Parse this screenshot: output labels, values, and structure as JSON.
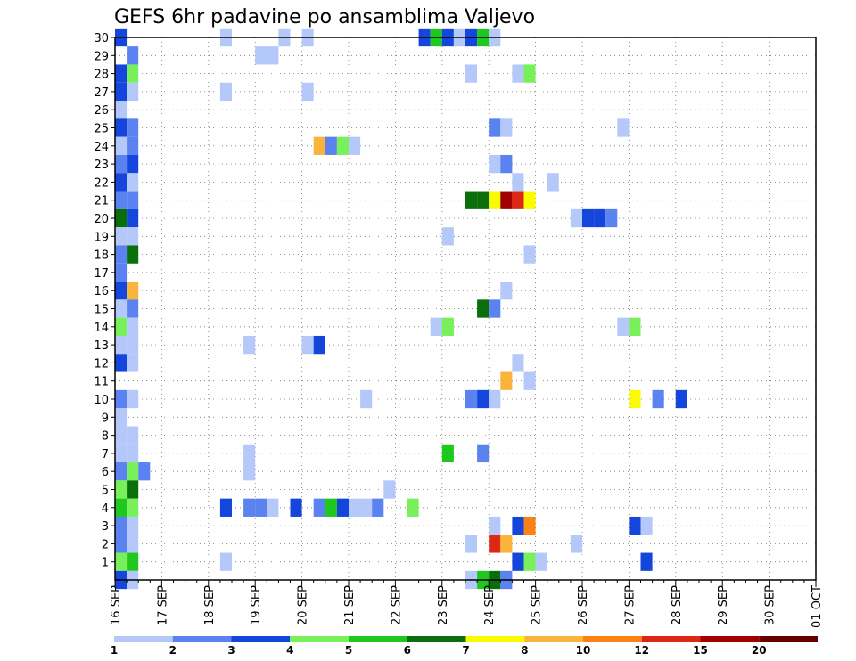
{
  "chart_data": {
    "type": "heatmap",
    "title": "GEFS 6hr padavine po ansamblima Valjevo",
    "y_ticks": [
      "1",
      "2",
      "3",
      "4",
      "5",
      "6",
      "7",
      "8",
      "9",
      "10",
      "11",
      "12",
      "13",
      "14",
      "15",
      "16",
      "17",
      "18",
      "19",
      "20",
      "21",
      "22",
      "23",
      "24",
      "25",
      "26",
      "27",
      "28",
      "29",
      "30"
    ],
    "ylim": [
      0,
      30
    ],
    "x_tick_labels": [
      "16 SEP",
      "17 SEP",
      "18 SEP",
      "19 SEP",
      "20 SEP",
      "21 SEP",
      "22 SEP",
      "23 SEP",
      "24 SEP",
      "25 SEP",
      "26 SEP",
      "27 SEP",
      "28 SEP",
      "29 SEP",
      "30 SEP",
      "01 OCT"
    ],
    "x_start": "16 SEP",
    "x_end": "01 OCT",
    "step_hours": 6,
    "grid": true,
    "legend": {
      "placement": "bottom",
      "labels": [
        "1",
        "2",
        "3",
        "4",
        "5",
        "6",
        "7",
        "8",
        "10",
        "12",
        "15",
        "20"
      ],
      "colors": [
        "#b4c8fa",
        "#5a82f0",
        "#1446dc",
        "#78f05a",
        "#1ec81e",
        "#0a6e0a",
        "#fafa00",
        "#fab43c",
        "#fa8214",
        "#dc2814",
        "#a00000",
        "#640000"
      ]
    },
    "cells": [
      {
        "member": 30,
        "slot": 0,
        "bin": 2
      },
      {
        "member": 30,
        "slot": 9,
        "bin": 0
      },
      {
        "member": 30,
        "slot": 14,
        "bin": 0
      },
      {
        "member": 30,
        "slot": 16,
        "bin": 0
      },
      {
        "member": 30,
        "slot": 26,
        "bin": 2
      },
      {
        "member": 30,
        "slot": 27,
        "bin": 4
      },
      {
        "member": 30,
        "slot": 28,
        "bin": 2
      },
      {
        "member": 30,
        "slot": 29,
        "bin": 0
      },
      {
        "member": 30,
        "slot": 30,
        "bin": 2
      },
      {
        "member": 30,
        "slot": 31,
        "bin": 4
      },
      {
        "member": 30,
        "slot": 32,
        "bin": 0
      },
      {
        "member": 29,
        "slot": 1,
        "bin": 1
      },
      {
        "member": 29,
        "slot": 12,
        "bin": 0
      },
      {
        "member": 29,
        "slot": 13,
        "bin": 0
      },
      {
        "member": 28,
        "slot": 0,
        "bin": 2
      },
      {
        "member": 28,
        "slot": 1,
        "bin": 3
      },
      {
        "member": 28,
        "slot": 30,
        "bin": 0
      },
      {
        "member": 28,
        "slot": 34,
        "bin": 0
      },
      {
        "member": 28,
        "slot": 35,
        "bin": 3
      },
      {
        "member": 27,
        "slot": 0,
        "bin": 2
      },
      {
        "member": 27,
        "slot": 1,
        "bin": 0
      },
      {
        "member": 27,
        "slot": 9,
        "bin": 0
      },
      {
        "member": 27,
        "slot": 16,
        "bin": 0
      },
      {
        "member": 26,
        "slot": 0,
        "bin": 0
      },
      {
        "member": 25,
        "slot": 0,
        "bin": 2
      },
      {
        "member": 25,
        "slot": 1,
        "bin": 1
      },
      {
        "member": 25,
        "slot": 32,
        "bin": 1
      },
      {
        "member": 25,
        "slot": 33,
        "bin": 0
      },
      {
        "member": 25,
        "slot": 43,
        "bin": 0
      },
      {
        "member": 24,
        "slot": 0,
        "bin": 0
      },
      {
        "member": 24,
        "slot": 1,
        "bin": 1
      },
      {
        "member": 24,
        "slot": 17,
        "bin": 7
      },
      {
        "member": 24,
        "slot": 18,
        "bin": 1
      },
      {
        "member": 24,
        "slot": 19,
        "bin": 3
      },
      {
        "member": 24,
        "slot": 20,
        "bin": 0
      },
      {
        "member": 23,
        "slot": 0,
        "bin": 1
      },
      {
        "member": 23,
        "slot": 1,
        "bin": 2
      },
      {
        "member": 23,
        "slot": 32,
        "bin": 0
      },
      {
        "member": 23,
        "slot": 33,
        "bin": 1
      },
      {
        "member": 22,
        "slot": 0,
        "bin": 2
      },
      {
        "member": 22,
        "slot": 1,
        "bin": 0
      },
      {
        "member": 22,
        "slot": 34,
        "bin": 0
      },
      {
        "member": 22,
        "slot": 37,
        "bin": 0
      },
      {
        "member": 21,
        "slot": 0,
        "bin": 1
      },
      {
        "member": 21,
        "slot": 1,
        "bin": 1
      },
      {
        "member": 21,
        "slot": 30,
        "bin": 5
      },
      {
        "member": 21,
        "slot": 31,
        "bin": 5
      },
      {
        "member": 21,
        "slot": 32,
        "bin": 6
      },
      {
        "member": 21,
        "slot": 33,
        "bin": 10
      },
      {
        "member": 21,
        "slot": 34,
        "bin": 9
      },
      {
        "member": 21,
        "slot": 35,
        "bin": 6
      },
      {
        "member": 20,
        "slot": 0,
        "bin": 5
      },
      {
        "member": 20,
        "slot": 1,
        "bin": 2
      },
      {
        "member": 20,
        "slot": 39,
        "bin": 0
      },
      {
        "member": 20,
        "slot": 40,
        "bin": 2
      },
      {
        "member": 20,
        "slot": 41,
        "bin": 2
      },
      {
        "member": 20,
        "slot": 42,
        "bin": 1
      },
      {
        "member": 19,
        "slot": 0,
        "bin": 0
      },
      {
        "member": 19,
        "slot": 1,
        "bin": 0
      },
      {
        "member": 19,
        "slot": 28,
        "bin": 0
      },
      {
        "member": 18,
        "slot": 0,
        "bin": 1
      },
      {
        "member": 18,
        "slot": 1,
        "bin": 5
      },
      {
        "member": 18,
        "slot": 35,
        "bin": 0
      },
      {
        "member": 17,
        "slot": 0,
        "bin": 1
      },
      {
        "member": 16,
        "slot": 0,
        "bin": 2
      },
      {
        "member": 16,
        "slot": 1,
        "bin": 7
      },
      {
        "member": 16,
        "slot": 33,
        "bin": 0
      },
      {
        "member": 15,
        "slot": 0,
        "bin": 0
      },
      {
        "member": 15,
        "slot": 1,
        "bin": 1
      },
      {
        "member": 15,
        "slot": 31,
        "bin": 5
      },
      {
        "member": 15,
        "slot": 32,
        "bin": 1
      },
      {
        "member": 14,
        "slot": 0,
        "bin": 3
      },
      {
        "member": 14,
        "slot": 1,
        "bin": 0
      },
      {
        "member": 14,
        "slot": 27,
        "bin": 0
      },
      {
        "member": 14,
        "slot": 28,
        "bin": 3
      },
      {
        "member": 14,
        "slot": 43,
        "bin": 0
      },
      {
        "member": 14,
        "slot": 44,
        "bin": 3
      },
      {
        "member": 13,
        "slot": 0,
        "bin": 0
      },
      {
        "member": 13,
        "slot": 1,
        "bin": 0
      },
      {
        "member": 13,
        "slot": 11,
        "bin": 0
      },
      {
        "member": 13,
        "slot": 16,
        "bin": 0
      },
      {
        "member": 13,
        "slot": 17,
        "bin": 2
      },
      {
        "member": 12,
        "slot": 0,
        "bin": 2
      },
      {
        "member": 12,
        "slot": 1,
        "bin": 0
      },
      {
        "member": 12,
        "slot": 34,
        "bin": 0
      },
      {
        "member": 11,
        "slot": 33,
        "bin": 7
      },
      {
        "member": 11,
        "slot": 35,
        "bin": 0
      },
      {
        "member": 10,
        "slot": 0,
        "bin": 1
      },
      {
        "member": 10,
        "slot": 1,
        "bin": 0
      },
      {
        "member": 10,
        "slot": 21,
        "bin": 0
      },
      {
        "member": 10,
        "slot": 30,
        "bin": 1
      },
      {
        "member": 10,
        "slot": 31,
        "bin": 2
      },
      {
        "member": 10,
        "slot": 32,
        "bin": 0
      },
      {
        "member": 10,
        "slot": 44,
        "bin": 6
      },
      {
        "member": 10,
        "slot": 46,
        "bin": 1
      },
      {
        "member": 10,
        "slot": 48,
        "bin": 2
      },
      {
        "member": 9,
        "slot": 0,
        "bin": 0
      },
      {
        "member": 8,
        "slot": 0,
        "bin": 0
      },
      {
        "member": 8,
        "slot": 1,
        "bin": 0
      },
      {
        "member": 7,
        "slot": 0,
        "bin": 0
      },
      {
        "member": 7,
        "slot": 1,
        "bin": 0
      },
      {
        "member": 7,
        "slot": 11,
        "bin": 0
      },
      {
        "member": 7,
        "slot": 28,
        "bin": 4
      },
      {
        "member": 7,
        "slot": 31,
        "bin": 1
      },
      {
        "member": 6,
        "slot": 0,
        "bin": 1
      },
      {
        "member": 6,
        "slot": 1,
        "bin": 3
      },
      {
        "member": 6,
        "slot": 2,
        "bin": 1
      },
      {
        "member": 6,
        "slot": 11,
        "bin": 0
      },
      {
        "member": 5,
        "slot": 0,
        "bin": 3
      },
      {
        "member": 5,
        "slot": 1,
        "bin": 5
      },
      {
        "member": 5,
        "slot": 23,
        "bin": 0
      },
      {
        "member": 4,
        "slot": 0,
        "bin": 4
      },
      {
        "member": 4,
        "slot": 1,
        "bin": 3
      },
      {
        "member": 4,
        "slot": 9,
        "bin": 2
      },
      {
        "member": 4,
        "slot": 11,
        "bin": 1
      },
      {
        "member": 4,
        "slot": 12,
        "bin": 1
      },
      {
        "member": 4,
        "slot": 13,
        "bin": 0
      },
      {
        "member": 4,
        "slot": 15,
        "bin": 2
      },
      {
        "member": 4,
        "slot": 17,
        "bin": 1
      },
      {
        "member": 4,
        "slot": 18,
        "bin": 4
      },
      {
        "member": 4,
        "slot": 19,
        "bin": 2
      },
      {
        "member": 4,
        "slot": 20,
        "bin": 0
      },
      {
        "member": 4,
        "slot": 21,
        "bin": 0
      },
      {
        "member": 4,
        "slot": 22,
        "bin": 1
      },
      {
        "member": 4,
        "slot": 25,
        "bin": 3
      },
      {
        "member": 3,
        "slot": 0,
        "bin": 1
      },
      {
        "member": 3,
        "slot": 1,
        "bin": 0
      },
      {
        "member": 3,
        "slot": 32,
        "bin": 0
      },
      {
        "member": 3,
        "slot": 34,
        "bin": 2
      },
      {
        "member": 3,
        "slot": 35,
        "bin": 8
      },
      {
        "member": 3,
        "slot": 44,
        "bin": 2
      },
      {
        "member": 3,
        "slot": 45,
        "bin": 0
      },
      {
        "member": 2,
        "slot": 0,
        "bin": 1
      },
      {
        "member": 2,
        "slot": 1,
        "bin": 0
      },
      {
        "member": 2,
        "slot": 30,
        "bin": 0
      },
      {
        "member": 2,
        "slot": 32,
        "bin": 9
      },
      {
        "member": 2,
        "slot": 33,
        "bin": 7
      },
      {
        "member": 2,
        "slot": 39,
        "bin": 0
      },
      {
        "member": 1,
        "slot": 0,
        "bin": 3
      },
      {
        "member": 1,
        "slot": 1,
        "bin": 4
      },
      {
        "member": 1,
        "slot": 9,
        "bin": 0
      },
      {
        "member": 1,
        "slot": 34,
        "bin": 2
      },
      {
        "member": 1,
        "slot": 35,
        "bin": 3
      },
      {
        "member": 1,
        "slot": 36,
        "bin": 0
      },
      {
        "member": 1,
        "slot": 45,
        "bin": 2
      },
      {
        "member": 0,
        "slot": 0,
        "bin": 2
      },
      {
        "member": 0,
        "slot": 1,
        "bin": 0
      },
      {
        "member": 0,
        "slot": 30,
        "bin": 0
      },
      {
        "member": 0,
        "slot": 31,
        "bin": 4
      },
      {
        "member": 0,
        "slot": 32,
        "bin": 5
      },
      {
        "member": 0,
        "slot": 33,
        "bin": 1
      }
    ]
  }
}
